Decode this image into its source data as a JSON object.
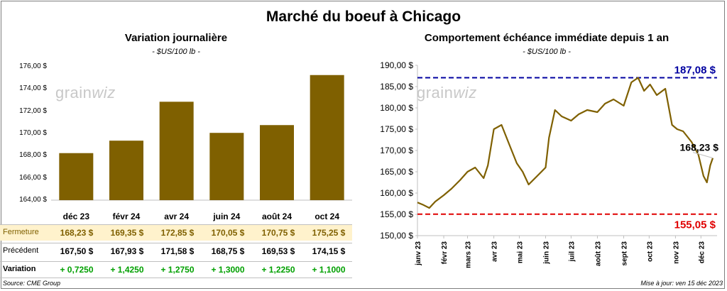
{
  "title": "Marché du boeuf à Chicago",
  "source": "Source: CME Group",
  "update": "Mise à jour: ven 15 déc 2023",
  "watermark": {
    "left": "grain",
    "right": "wiz"
  },
  "colors": {
    "bar": "#7f6000",
    "line": "#7f6000",
    "max_line": "#0000a0",
    "min_line": "#e00000",
    "fermeture_bg": "#fff2cc",
    "positive": "#00a000"
  },
  "left_chart": {
    "title": "Variation  journalière",
    "unit": "- $US/100 lb -",
    "chart_data": {
      "type": "bar",
      "categories": [
        "déc 23",
        "févr 24",
        "avr 24",
        "juin 24",
        "août 24",
        "oct 24"
      ],
      "values": [
        168.23,
        169.35,
        172.85,
        170.05,
        170.75,
        175.25
      ],
      "ylim": [
        164,
        176
      ],
      "y_ticks": [
        "164,00 $",
        "166,00 $",
        "168,00 $",
        "170,00 $",
        "172,00 $",
        "174,00 $",
        "176,00 $"
      ]
    },
    "table": {
      "rows": [
        {
          "label": "Fermeture",
          "cells": [
            "168,23  $",
            "169,35  $",
            "172,85  $",
            "170,05  $",
            "170,75  $",
            "175,25  $"
          ]
        },
        {
          "label": "Précédent",
          "cells": [
            "167,50  $",
            "167,93  $",
            "171,58  $",
            "168,75  $",
            "169,53  $",
            "174,15  $"
          ]
        },
        {
          "label": "Variation",
          "cells": [
            "+ 0,7250",
            "+ 1,4250",
            "+ 1,2750",
            "+ 1,3000",
            "+ 1,2250",
            "+ 1,1000"
          ]
        }
      ]
    }
  },
  "right_chart": {
    "title": "Comportement  échéance immédiate depuis 1 an",
    "unit": "- $US/100 lb -",
    "chart_data": {
      "type": "line",
      "x": [
        "2023-01-01",
        "2023-01-08",
        "2023-01-15",
        "2023-01-22",
        "2023-02-01",
        "2023-02-10",
        "2023-02-20",
        "2023-03-01",
        "2023-03-10",
        "2023-03-20",
        "2023-03-25",
        "2023-04-01",
        "2023-04-10",
        "2023-04-20",
        "2023-04-28",
        "2023-05-05",
        "2023-05-12",
        "2023-05-22",
        "2023-06-01",
        "2023-06-05",
        "2023-06-12",
        "2023-06-20",
        "2023-07-01",
        "2023-07-10",
        "2023-07-20",
        "2023-08-01",
        "2023-08-10",
        "2023-08-20",
        "2023-09-01",
        "2023-09-10",
        "2023-09-18",
        "2023-09-25",
        "2023-10-02",
        "2023-10-10",
        "2023-10-20",
        "2023-10-28",
        "2023-11-03",
        "2023-11-10",
        "2023-11-20",
        "2023-11-28",
        "2023-12-04",
        "2023-12-08",
        "2023-12-12",
        "2023-12-15"
      ],
      "values": [
        157.8,
        157.2,
        156.5,
        158.0,
        159.5,
        161.0,
        163.0,
        165.0,
        166.0,
        163.5,
        166.5,
        175.0,
        176.0,
        171.0,
        167.0,
        165.0,
        162.0,
        164.0,
        166.0,
        173.0,
        179.5,
        178.0,
        177.0,
        178.5,
        179.5,
        179.0,
        181.0,
        182.0,
        180.5,
        186.0,
        187.08,
        184.0,
        185.5,
        183.0,
        184.5,
        176.0,
        175.0,
        174.5,
        172.0,
        169.0,
        164.0,
        162.5,
        166.5,
        168.23
      ],
      "ylim": [
        150,
        190
      ],
      "y_ticks": [
        "150,00 $",
        "155,00 $",
        "160,00 $",
        "165,00 $",
        "170,00 $",
        "175,00 $",
        "180,00 $",
        "185,00 $",
        "190,00 $"
      ],
      "x_ticks": [
        "janv 23",
        "févr 23",
        "mars 23",
        "avr 23",
        "mai 23",
        "juin 23",
        "juil 23",
        "août 23",
        "sept 23",
        "oct 23",
        "nov 23",
        "déc 23"
      ],
      "max": 187.08,
      "min": 155.05,
      "max_label": "187,08 $",
      "min_label": "155,05 $",
      "last_label": "168,23 $"
    }
  }
}
